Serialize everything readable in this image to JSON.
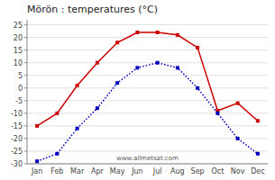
{
  "chart_data": {
    "type": "line",
    "title": "Mörön : temperatures (°C)",
    "categories": [
      "Jan",
      "Feb",
      "Mar",
      "Apr",
      "May",
      "Jun",
      "Jul",
      "Aug",
      "Sep",
      "Oct",
      "Nov",
      "Dec"
    ],
    "series": [
      {
        "color": "#cc0000",
        "marker": "square",
        "line_style": "solid",
        "values": [
          -15,
          -10,
          1,
          10,
          18,
          22,
          22,
          21,
          16,
          -9,
          -6,
          -13
        ]
      },
      {
        "color": "#0000bb",
        "marker": "square",
        "line_style": "dotted",
        "values": [
          -29,
          -26,
          -16,
          -8,
          2,
          8,
          10,
          8,
          0,
          -10,
          -20,
          -26
        ]
      }
    ],
    "ylim": [
      -30,
      27
    ],
    "yticks": [
      -30,
      -25,
      -20,
      -15,
      -10,
      -5,
      0,
      5,
      10,
      15,
      20,
      25
    ],
    "grid": true,
    "annotations": [
      "www.allmetsat.com"
    ]
  }
}
